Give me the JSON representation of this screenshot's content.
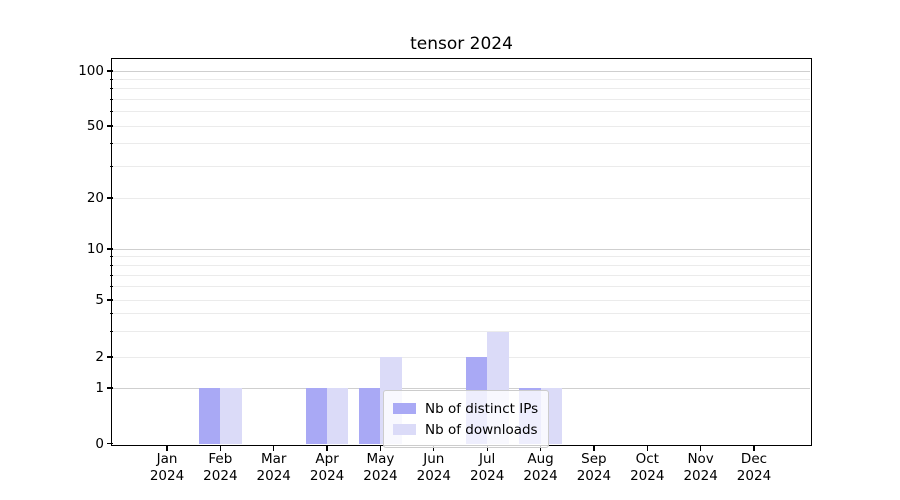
{
  "chart_data": {
    "type": "bar",
    "title": "tensor 2024",
    "yscale": "symlog",
    "grid": true,
    "legend_position": "lower center inside plot",
    "y_ticks": [
      0,
      1,
      2,
      5,
      10,
      20,
      50,
      100
    ],
    "y_minor_gridlines": [
      2,
      3,
      4,
      5,
      6,
      7,
      8,
      9,
      20,
      30,
      40,
      50,
      60,
      70,
      80,
      90
    ],
    "y_major_gridlines": [
      1,
      10,
      100
    ],
    "ylim": [
      0,
      115
    ],
    "months": [
      "Jan",
      "Feb",
      "Mar",
      "Apr",
      "May",
      "Jun",
      "Jul",
      "Aug",
      "Sep",
      "Oct",
      "Nov",
      "Dec"
    ],
    "year_label": "2024",
    "categories": [
      "Jan 2024",
      "Feb 2024",
      "Mar 2024",
      "Apr 2024",
      "May 2024",
      "Jun 2024",
      "Jul 2024",
      "Aug 2024",
      "Sep 2024",
      "Oct 2024",
      "Nov 2024",
      "Dec 2024"
    ],
    "series": [
      {
        "name": "Nb of distinct IPs",
        "color": "#a9a9f5",
        "values": [
          0,
          1,
          0,
          1,
          1,
          0,
          2,
          1,
          0,
          0,
          0,
          0
        ]
      },
      {
        "name": "Nb of downloads",
        "color": "#dbdbf8",
        "values": [
          0,
          1,
          0,
          1,
          2,
          0,
          3,
          1,
          0,
          0,
          0,
          0
        ]
      }
    ]
  },
  "colors": {
    "grid_major": "#cfcfcf",
    "grid_minor": "#ebebeb",
    "spine": "#000000",
    "legend_border": "#cccccc"
  }
}
